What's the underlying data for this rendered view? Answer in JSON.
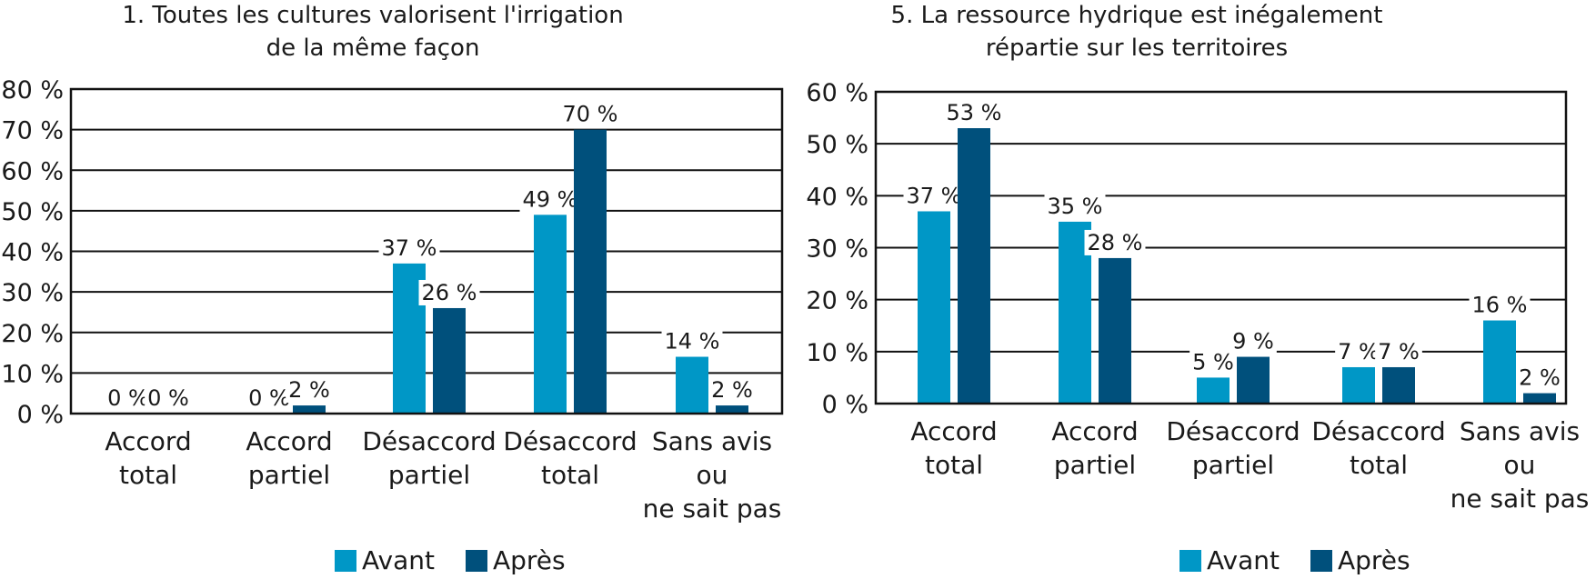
{
  "colors": {
    "avant": "#0097c6",
    "apres": "#00507c"
  },
  "chart_data": [
    {
      "type": "bar",
      "title_line1": "1. Toutes les cultures valorisent l'irrigation",
      "title_line2": "de la même façon",
      "categories": [
        [
          "Accord",
          "total"
        ],
        [
          "Accord",
          "partiel"
        ],
        [
          "Désaccord",
          "partiel"
        ],
        [
          "Désaccord",
          "total"
        ],
        [
          "Sans avis",
          "ou",
          "ne sait pas"
        ]
      ],
      "series": [
        {
          "name": "Avant",
          "values": [
            0,
            0,
            37,
            49,
            14
          ],
          "labels": [
            "0 %",
            "0 %",
            "37 %",
            "49 %",
            "14 %"
          ]
        },
        {
          "name": "Après",
          "values": [
            0,
            2,
            26,
            70,
            2
          ],
          "labels": [
            "0 %",
            "2 %",
            "26 %",
            "70 %",
            "2 %"
          ]
        }
      ],
      "ylim": [
        0,
        80
      ],
      "yticks": [
        0,
        10,
        20,
        30,
        40,
        50,
        60,
        70,
        80
      ],
      "ytick_labels": [
        "0 %",
        "10 %",
        "20 %",
        "30 %",
        "40 %",
        "50 %",
        "60 %",
        "70 %",
        "80 %"
      ],
      "grid": true,
      "legend": [
        "Avant",
        "Après"
      ],
      "legend_position": "bottom"
    },
    {
      "type": "bar",
      "title_line1": "5. La ressource hydrique est inégalement",
      "title_line2": "répartie sur les territoires",
      "categories": [
        [
          "Accord",
          "total"
        ],
        [
          "Accord",
          "partiel"
        ],
        [
          "Désaccord",
          "partiel"
        ],
        [
          "Désaccord",
          "total"
        ],
        [
          "Sans avis",
          "ou",
          "ne sait pas"
        ]
      ],
      "series": [
        {
          "name": "Avant",
          "values": [
            37,
            35,
            5,
            7,
            16
          ],
          "labels": [
            "37 %",
            "35 %",
            "5 %",
            "7 %",
            "16 %"
          ]
        },
        {
          "name": "Après",
          "values": [
            53,
            28,
            9,
            7,
            2
          ],
          "labels": [
            "53 %",
            "28 %",
            "9 %",
            "7 %",
            "2 %"
          ]
        }
      ],
      "ylim": [
        0,
        60
      ],
      "yticks": [
        0,
        10,
        20,
        30,
        40,
        50,
        60
      ],
      "ytick_labels": [
        "0 %",
        "10 %",
        "20 %",
        "30 %",
        "40 %",
        "50 %",
        "60 %"
      ],
      "grid": true,
      "legend": [
        "Avant",
        "Après"
      ],
      "legend_position": "bottom"
    }
  ]
}
